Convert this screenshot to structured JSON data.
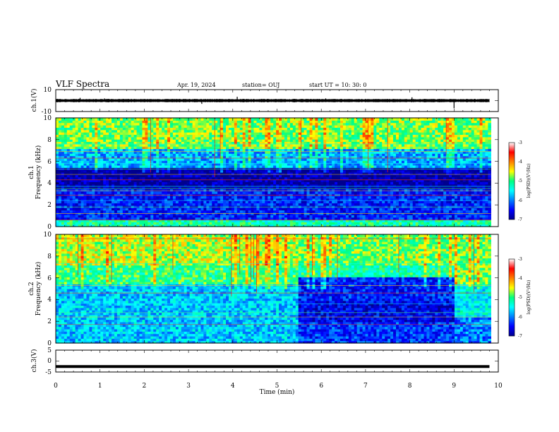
{
  "header": {
    "title": "VLF Spectra",
    "date": "Apr. 19, 2024",
    "station": "station= OUJ",
    "start": "start  UT  =   10: 30: 0"
  },
  "chart_data": [
    {
      "type": "line",
      "name": "ch1-waveform",
      "ylabel": "ch.1(V)",
      "ylim": [
        -10,
        10
      ],
      "y_tick_labels": [
        "10",
        "-10"
      ],
      "xlim": [
        0,
        10
      ],
      "baseline_v": 0,
      "noise_band_v": 1.2,
      "spikes": [
        {
          "x": 0.55,
          "y": 2.5
        },
        {
          "x": 1.1,
          "y": 2.0
        },
        {
          "x": 3.3,
          "y": -3.0
        },
        {
          "x": 4.1,
          "y": 3.5
        },
        {
          "x": 6.1,
          "y": 2.0
        },
        {
          "x": 8.05,
          "y": 3.0
        },
        {
          "x": 9.0,
          "y": -7.0
        }
      ]
    },
    {
      "type": "heatmap",
      "name": "ch1-spectrogram",
      "ylabel_channel": "ch.1",
      "ylabel": "Frequency (kHz)",
      "xlim": [
        0,
        10
      ],
      "data_xmax": 9.83,
      "ylim": [
        0,
        10
      ],
      "y_ticks": [
        0,
        2,
        4,
        6,
        8,
        10
      ],
      "bands_log_psd": [
        {
          "f0": 0.0,
          "f1": 0.6,
          "v": -5.2
        },
        {
          "f0": 0.6,
          "f1": 3.4,
          "v": -6.4
        },
        {
          "f0": 3.4,
          "f1": 5.4,
          "v": -6.9
        },
        {
          "f0": 5.4,
          "f1": 7.2,
          "v": -5.8
        },
        {
          "f0": 7.2,
          "f1": 10.0,
          "v": -4.8
        }
      ],
      "tones_khz": [
        0.6,
        1.2,
        1.8,
        2.4,
        2.9,
        3.3,
        3.5,
        3.7,
        4.3,
        4.8,
        5.3,
        5.8,
        6.3,
        6.9,
        7.3,
        7.6
      ],
      "colorbar": {
        "label": "log(PSD)(V²/Hz)",
        "range": [
          -7,
          -3
        ],
        "ticks": [
          "-3",
          "-4",
          "-5",
          "-6",
          "-7"
        ]
      }
    },
    {
      "type": "heatmap",
      "name": "ch2-spectrogram",
      "ylabel_channel": "ch.2",
      "ylabel": "Frequency (kHz)",
      "xlim": [
        0,
        10
      ],
      "data_xmax": 9.83,
      "ylim": [
        0,
        10
      ],
      "y_ticks": [
        0,
        2,
        4,
        6,
        8,
        10
      ],
      "segments": [
        {
          "t0": 0.0,
          "t1": 5.45,
          "bands_log_psd": [
            {
              "f0": 0.0,
              "f1": 5.4,
              "v": -5.7
            },
            {
              "f0": 5.4,
              "f1": 7.2,
              "v": -5.0
            },
            {
              "f0": 7.2,
              "f1": 10.0,
              "v": -4.6
            }
          ]
        },
        {
          "t0": 5.45,
          "t1": 9.0,
          "bands_log_psd": [
            {
              "f0": 0.0,
              "f1": 2.0,
              "v": -6.3
            },
            {
              "f0": 2.0,
              "f1": 4.0,
              "v": -6.6
            },
            {
              "f0": 4.0,
              "f1": 6.0,
              "v": -6.4
            },
            {
              "f0": 6.0,
              "f1": 7.2,
              "v": -5.2
            },
            {
              "f0": 7.2,
              "f1": 10.0,
              "v": -4.8
            }
          ]
        },
        {
          "t0": 9.0,
          "t1": 9.83,
          "bands_log_psd": [
            {
              "f0": 0.0,
              "f1": 2.5,
              "v": -6.0
            },
            {
              "f0": 2.5,
              "f1": 5.5,
              "v": -5.5
            },
            {
              "f0": 5.5,
              "f1": 10.0,
              "v": -4.8
            }
          ]
        }
      ],
      "tones_khz": [
        1.7,
        2.4,
        2.8,
        3.6,
        4.6,
        5.3,
        6.7,
        7.3,
        9.6
      ],
      "colorbar": {
        "label": "log(PSD)(V²/Hz)",
        "range": [
          -7,
          -3
        ],
        "ticks": [
          "-3",
          "-4",
          "-5",
          "-6",
          "-7"
        ]
      }
    },
    {
      "type": "line",
      "name": "ch3-waveform",
      "ylabel": "ch.3(V)",
      "ylim": [
        -5,
        5
      ],
      "y_tick_labels": [
        "5",
        "0",
        "-5"
      ],
      "xlim": [
        0,
        10
      ],
      "level_v": -2.5
    }
  ],
  "x_axis": {
    "label": "Time  (min)",
    "ticks": [
      "0",
      "1",
      "2",
      "3",
      "4",
      "5",
      "6",
      "7",
      "8",
      "9",
      "10"
    ]
  }
}
